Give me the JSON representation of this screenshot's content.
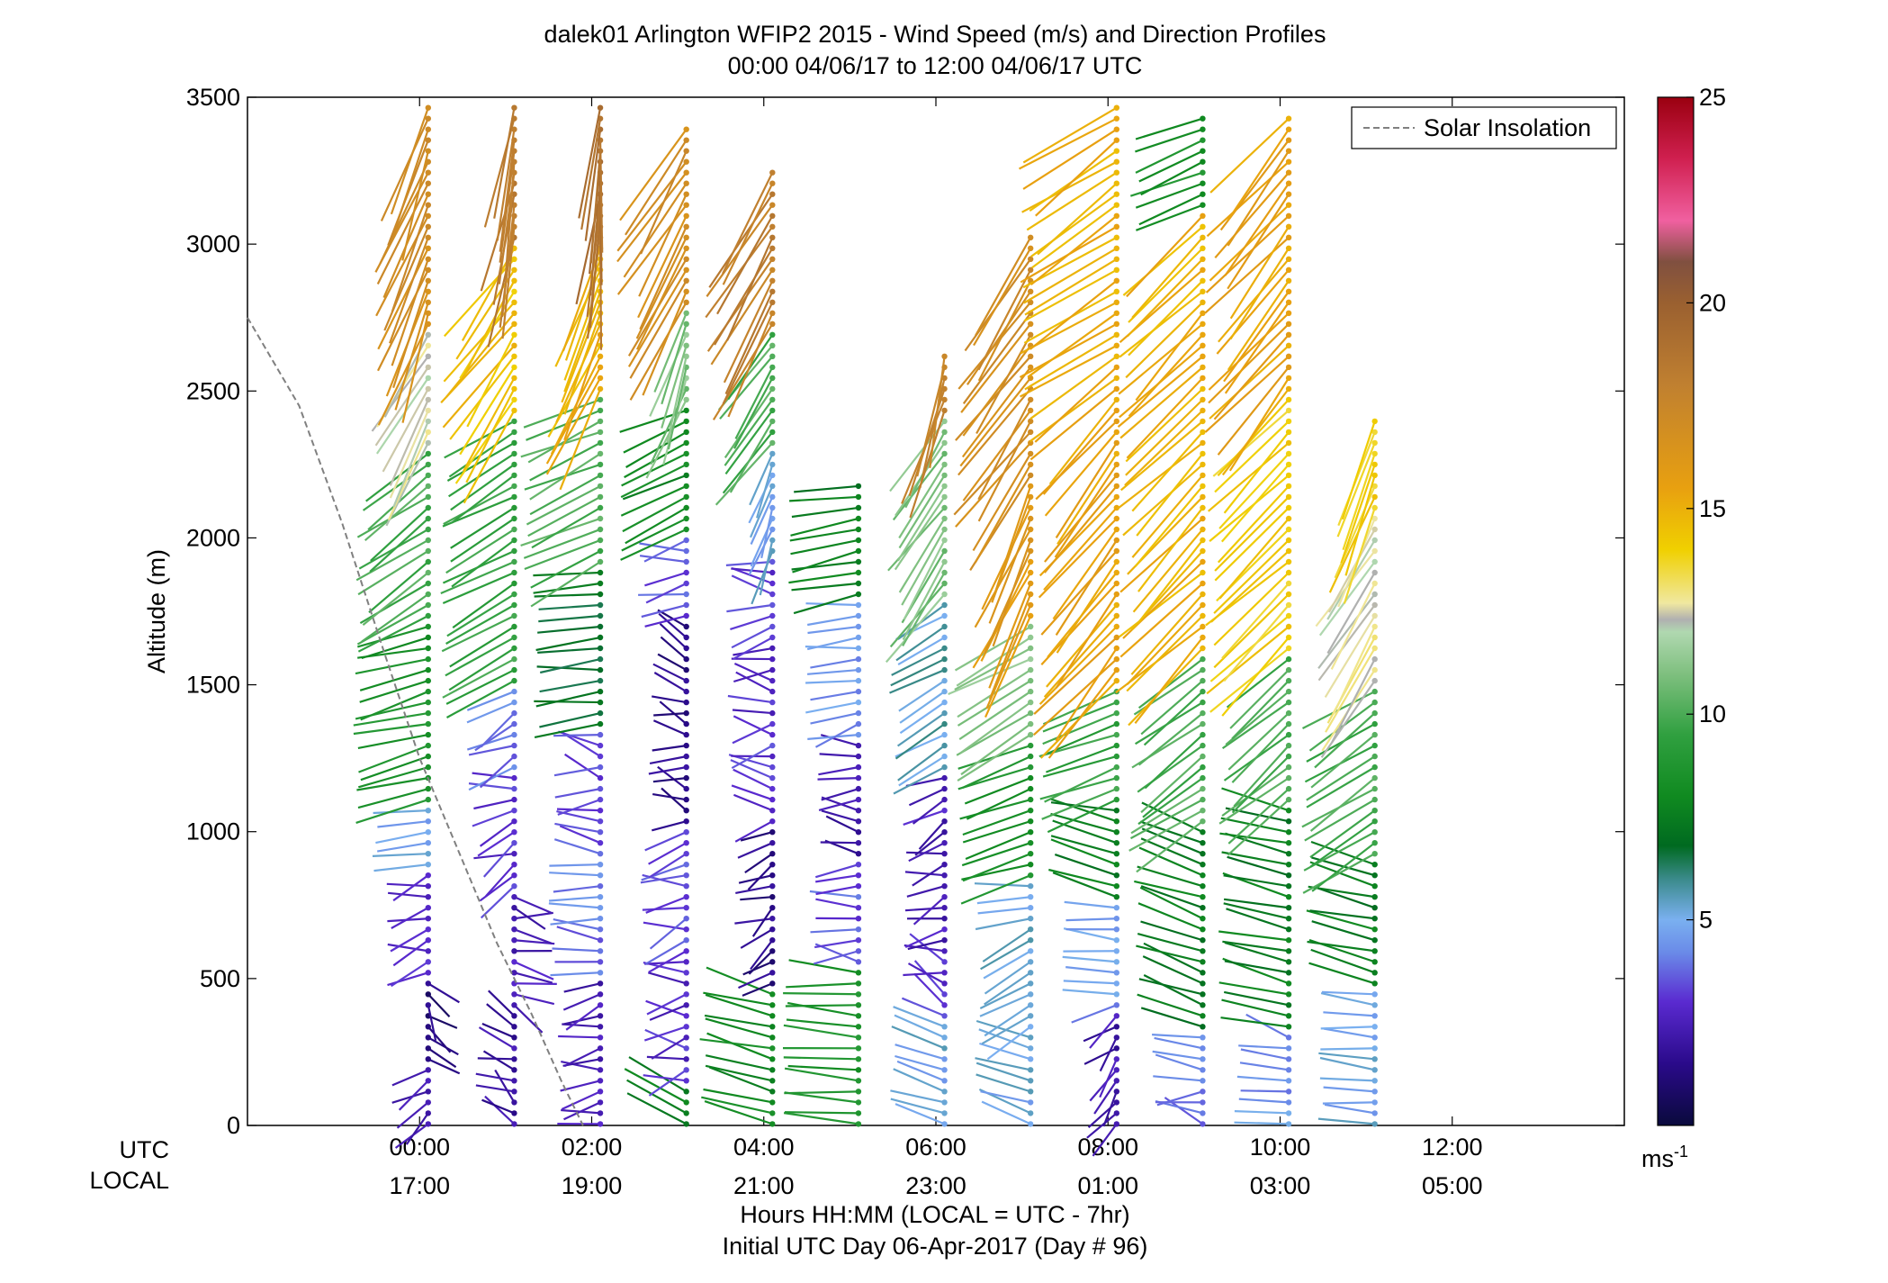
{
  "chart_data": {
    "type": "wind-barb-profile",
    "title": "dalek01 Arlington WFIP2 2015 - Wind Speed (m/s) and Direction Profiles",
    "subtitle": "00:00 04/06/17 to 12:00 04/06/17  UTC",
    "ylabel": "Altitude (m)",
    "ylim": [
      0,
      3500
    ],
    "yticks": [
      0,
      500,
      1000,
      1500,
      2000,
      2500,
      3000,
      3500
    ],
    "xlim_hours": [
      -2,
      14
    ],
    "xticks": [
      {
        "utc": "00:00",
        "local": "17:00",
        "hour": 0
      },
      {
        "utc": "02:00",
        "local": "19:00",
        "hour": 2
      },
      {
        "utc": "04:00",
        "local": "21:00",
        "hour": 4
      },
      {
        "utc": "06:00",
        "local": "23:00",
        "hour": 6
      },
      {
        "utc": "08:00",
        "local": "01:00",
        "hour": 8
      },
      {
        "utc": "10:00",
        "local": "03:00",
        "hour": 10
      },
      {
        "utc": "12:00",
        "local": "05:00",
        "hour": 12
      }
    ],
    "row_label_utc": "UTC",
    "row_label_local": "LOCAL",
    "xlabel": "Hours HH:MM  (LOCAL = UTC - 7hr)",
    "xlabel2": "Initial UTC Day 06-Apr-2017 (Day # 96)",
    "legend": {
      "label": "Solar Insolation",
      "placement": "top-right",
      "style": "dashed",
      "color": "#808080"
    },
    "colorbar": {
      "label_main": "ms",
      "label_sup": "-1",
      "range": [
        0,
        25
      ],
      "ticks": [
        5,
        10,
        15,
        20,
        25
      ],
      "colors": [
        {
          "v": 0,
          "c": "#0a0a3c"
        },
        {
          "v": 1.5,
          "c": "#2a0a8a"
        },
        {
          "v": 3,
          "c": "#5a2ad0"
        },
        {
          "v": 4.2,
          "c": "#6a8ae8"
        },
        {
          "v": 5,
          "c": "#7ab0f0"
        },
        {
          "v": 6,
          "c": "#3a8a8a"
        },
        {
          "v": 6.8,
          "c": "#006a20"
        },
        {
          "v": 8,
          "c": "#108a20"
        },
        {
          "v": 9.5,
          "c": "#30a040"
        },
        {
          "v": 11,
          "c": "#80c080"
        },
        {
          "v": 12,
          "c": "#b0d8b0"
        },
        {
          "v": 12.3,
          "c": "#b0b0b0"
        },
        {
          "v": 12.7,
          "c": "#f0e8a0"
        },
        {
          "v": 14,
          "c": "#f0d000"
        },
        {
          "v": 15.5,
          "c": "#e8a010"
        },
        {
          "v": 18,
          "c": "#c08030"
        },
        {
          "v": 20,
          "c": "#9a6030"
        },
        {
          "v": 21,
          "c": "#805040"
        },
        {
          "v": 22,
          "c": "#f060a0"
        },
        {
          "v": 23.5,
          "c": "#d02050"
        },
        {
          "v": 25,
          "c": "#9a0010"
        }
      ]
    },
    "profiles": [
      {
        "hour": 0.1,
        "maxAlt": 3470,
        "segments": [
          {
            "upTo": 200,
            "speed": 2.5,
            "dir": 230
          },
          {
            "upTo": 500,
            "speed": 1.2,
            "dir": 140
          },
          {
            "upTo": 860,
            "speed": 3.0,
            "dir": 250
          },
          {
            "upTo": 1100,
            "speed": 5.0,
            "dir": 265
          },
          {
            "upTo": 1700,
            "speed": 8.5,
            "dir": 255
          },
          {
            "upTo": 2300,
            "speed": 10.0,
            "dir": 235
          },
          {
            "upTo": 2700,
            "speed": 12.5,
            "dir": 210
          },
          {
            "upTo": 3500,
            "speed": 17.0,
            "dir": 200
          }
        ]
      },
      {
        "hour": 1.1,
        "maxAlt": 3470,
        "segments": [
          {
            "upTo": 400,
            "speed": 2.0,
            "dir": 300
          },
          {
            "upTo": 800,
            "speed": 2.5,
            "dir": 110
          },
          {
            "upTo": 1200,
            "speed": 3.0,
            "dir": 250
          },
          {
            "upTo": 1500,
            "speed": 4.0,
            "dir": 245
          },
          {
            "upTo": 2400,
            "speed": 9.5,
            "dir": 240
          },
          {
            "upTo": 3000,
            "speed": 14.5,
            "dir": 215
          },
          {
            "upTo": 3500,
            "speed": 18.5,
            "dir": 190
          }
        ]
      },
      {
        "hour": 2.1,
        "maxAlt": 3470,
        "segments": [
          {
            "upTo": 500,
            "speed": 2.5,
            "dir": 260
          },
          {
            "upTo": 950,
            "speed": 4.0,
            "dir": 270
          },
          {
            "upTo": 1350,
            "speed": 3.5,
            "dir": 275
          },
          {
            "upTo": 1900,
            "speed": 7.0,
            "dir": 265
          },
          {
            "upTo": 2500,
            "speed": 10.0,
            "dir": 245
          },
          {
            "upTo": 3000,
            "speed": 15.0,
            "dir": 205
          },
          {
            "upTo": 3500,
            "speed": 19.0,
            "dir": 185
          }
        ]
      },
      {
        "hour": 3.1,
        "maxAlt": 3400,
        "segments": [
          {
            "upTo": 150,
            "speed": 7.5,
            "dir": 295
          },
          {
            "upTo": 600,
            "speed": 2.8,
            "dir": 265
          },
          {
            "upTo": 1000,
            "speed": 3.5,
            "dir": 260
          },
          {
            "upTo": 1700,
            "speed": 1.5,
            "dir": 285
          },
          {
            "upTo": 2000,
            "speed": 3.5,
            "dir": 265
          },
          {
            "upTo": 2450,
            "speed": 8.0,
            "dir": 245
          },
          {
            "upTo": 2800,
            "speed": 11.0,
            "dir": 200
          },
          {
            "upTo": 3450,
            "speed": 17.0,
            "dir": 210
          }
        ]
      },
      {
        "hour": 4.1,
        "maxAlt": 3250,
        "segments": [
          {
            "upTo": 450,
            "speed": 8.0,
            "dir": 285
          },
          {
            "upTo": 1000,
            "speed": 1.5,
            "dir": 240
          },
          {
            "upTo": 1950,
            "speed": 3.0,
            "dir": 270
          },
          {
            "upTo": 2300,
            "speed": 5.0,
            "dir": 200
          },
          {
            "upTo": 2700,
            "speed": 10.0,
            "dir": 215
          },
          {
            "upTo": 3250,
            "speed": 18.0,
            "dir": 210
          }
        ]
      },
      {
        "hour": 5.1,
        "maxAlt": 2200,
        "segments": [
          {
            "upTo": 550,
            "speed": 8.5,
            "dir": 275
          },
          {
            "upTo": 900,
            "speed": 3.5,
            "dir": 280
          },
          {
            "upTo": 1300,
            "speed": 2.0,
            "dir": 270
          },
          {
            "upTo": 1800,
            "speed": 4.5,
            "dir": 265
          },
          {
            "upTo": 2200,
            "speed": 7.5,
            "dir": 260
          }
        ]
      },
      {
        "hour": 6.1,
        "maxAlt": 2620,
        "segments": [
          {
            "upTo": 350,
            "speed": 5.0,
            "dir": 290
          },
          {
            "upTo": 600,
            "speed": 3.0,
            "dir": 290
          },
          {
            "upTo": 1200,
            "speed": 2.5,
            "dir": 250
          },
          {
            "upTo": 1800,
            "speed": 5.5,
            "dir": 240
          },
          {
            "upTo": 2400,
            "speed": 11.0,
            "dir": 215
          },
          {
            "upTo": 2620,
            "speed": 18.0,
            "dir": 195
          }
        ]
      },
      {
        "hour": 7.1,
        "maxAlt": 3040,
        "segments": [
          {
            "upTo": 300,
            "speed": 5.0,
            "dir": 290
          },
          {
            "upTo": 700,
            "speed": 5.5,
            "dir": 240
          },
          {
            "upTo": 850,
            "speed": 5.0,
            "dir": 265
          },
          {
            "upTo": 1300,
            "speed": 8.5,
            "dir": 250
          },
          {
            "upTo": 1700,
            "speed": 11.0,
            "dir": 240
          },
          {
            "upTo": 2200,
            "speed": 16.0,
            "dir": 205
          },
          {
            "upTo": 3050,
            "speed": 17.0,
            "dir": 215
          }
        ]
      },
      {
        "hour": 8.1,
        "maxAlt": 3480,
        "segments": [
          {
            "upTo": 400,
            "speed": 2.2,
            "dir": 230
          },
          {
            "upTo": 750,
            "speed": 4.5,
            "dir": 275
          },
          {
            "upTo": 1100,
            "speed": 7.5,
            "dir": 285
          },
          {
            "upTo": 1500,
            "speed": 9.5,
            "dir": 250
          },
          {
            "upTo": 2500,
            "speed": 15.5,
            "dir": 220
          },
          {
            "upTo": 3500,
            "speed": 15.0,
            "dir": 235
          }
        ]
      },
      {
        "hour": 9.1,
        "maxAlt": 3460,
        "segments": [
          {
            "upTo": 300,
            "speed": 4.0,
            "dir": 280
          },
          {
            "upTo": 1000,
            "speed": 7.5,
            "dir": 290
          },
          {
            "upTo": 1600,
            "speed": 10.0,
            "dir": 235
          },
          {
            "upTo": 3100,
            "speed": 15.0,
            "dir": 225
          },
          {
            "upTo": 3500,
            "speed": 8.5,
            "dir": 250
          }
        ]
      },
      {
        "hour": 10.1,
        "maxAlt": 3460,
        "segments": [
          {
            "upTo": 300,
            "speed": 4.5,
            "dir": 275
          },
          {
            "upTo": 1100,
            "speed": 7.5,
            "dir": 285
          },
          {
            "upTo": 1600,
            "speed": 10.0,
            "dir": 230
          },
          {
            "upTo": 2500,
            "speed": 14.0,
            "dir": 225
          },
          {
            "upTo": 3500,
            "speed": 15.5,
            "dir": 220
          }
        ]
      },
      {
        "hour": 11.1,
        "maxAlt": 2400,
        "segments": [
          {
            "upTo": 450,
            "speed": 5.0,
            "dir": 275
          },
          {
            "upTo": 900,
            "speed": 7.5,
            "dir": 285
          },
          {
            "upTo": 1500,
            "speed": 10.0,
            "dir": 235
          },
          {
            "upTo": 2100,
            "speed": 12.5,
            "dir": 210
          },
          {
            "upTo": 2450,
            "speed": 14.0,
            "dir": 200
          }
        ]
      }
    ]
  }
}
